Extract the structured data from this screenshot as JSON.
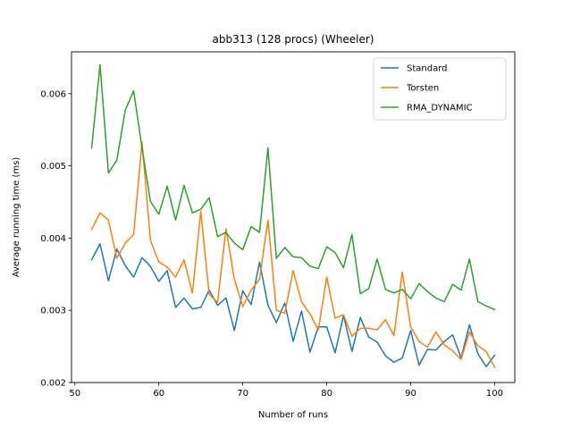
{
  "chart_data": {
    "type": "line",
    "title": "abb313 (128 procs) (Wheeler)",
    "xlabel": "Number of runs",
    "ylabel": "Average running time (ms)",
    "xlim": [
      49.6,
      102.4
    ],
    "ylim": [
      0.002,
      0.00658
    ],
    "xticks": [
      50,
      60,
      70,
      80,
      90,
      100
    ],
    "yticks": [
      0.002,
      0.003,
      0.004,
      0.005,
      0.006
    ],
    "ytick_labels": [
      "0.002",
      "0.003",
      "0.004",
      "0.005",
      "0.006"
    ],
    "grid": false,
    "legend_position": "top-right",
    "x": [
      52,
      53,
      54,
      55,
      56,
      57,
      58,
      59,
      60,
      61,
      62,
      63,
      64,
      65,
      66,
      67,
      68,
      69,
      70,
      71,
      72,
      73,
      74,
      75,
      76,
      77,
      78,
      79,
      80,
      81,
      82,
      83,
      84,
      85,
      86,
      87,
      88,
      89,
      90,
      91,
      92,
      93,
      94,
      95,
      96,
      97,
      98,
      99,
      100
    ],
    "series": [
      {
        "name": "Standard",
        "color": "#1f77b4",
        "values": [
          0.0037,
          0.00392,
          0.00341,
          0.00385,
          0.00362,
          0.00346,
          0.00373,
          0.00361,
          0.0034,
          0.00355,
          0.00304,
          0.00317,
          0.00302,
          0.00304,
          0.00328,
          0.00307,
          0.00317,
          0.00272,
          0.00327,
          0.00308,
          0.00367,
          0.00307,
          0.00283,
          0.0031,
          0.00257,
          0.00299,
          0.00242,
          0.00277,
          0.00277,
          0.00241,
          0.00293,
          0.00243,
          0.0029,
          0.00263,
          0.00256,
          0.00237,
          0.00228,
          0.00234,
          0.00272,
          0.00224,
          0.00246,
          0.00245,
          0.00257,
          0.00266,
          0.00234,
          0.0028,
          0.0024,
          0.00222,
          0.00238
        ]
      },
      {
        "name": "Torsten",
        "color": "#ff7f0e",
        "values": [
          0.00412,
          0.00435,
          0.00425,
          0.00372,
          0.00393,
          0.00405,
          0.00533,
          0.00397,
          0.00367,
          0.0036,
          0.00346,
          0.0037,
          0.00324,
          0.00437,
          0.00322,
          0.00311,
          0.00413,
          0.00343,
          0.00305,
          0.00328,
          0.00343,
          0.00425,
          0.003,
          0.00296,
          0.00355,
          0.00312,
          0.00295,
          0.00273,
          0.00346,
          0.00289,
          0.00294,
          0.00264,
          0.00275,
          0.00275,
          0.00273,
          0.00287,
          0.00265,
          0.00353,
          0.00277,
          0.00257,
          0.00249,
          0.0027,
          0.00252,
          0.00244,
          0.00232,
          0.0027,
          0.00251,
          0.00243,
          0.00221
        ]
      },
      {
        "name": "RMA_DYNAMIC",
        "color": "#2ca02c",
        "values": [
          0.00525,
          0.0064,
          0.0049,
          0.00508,
          0.00577,
          0.00604,
          0.00525,
          0.00451,
          0.00433,
          0.00472,
          0.00425,
          0.00473,
          0.00435,
          0.0044,
          0.00456,
          0.00402,
          0.00408,
          0.00393,
          0.00384,
          0.00416,
          0.00408,
          0.00525,
          0.00372,
          0.00387,
          0.00374,
          0.00373,
          0.00361,
          0.00358,
          0.00388,
          0.0038,
          0.00359,
          0.00405,
          0.00323,
          0.0033,
          0.00371,
          0.00329,
          0.00324,
          0.00329,
          0.00316,
          0.00337,
          0.00326,
          0.00317,
          0.00312,
          0.00336,
          0.00328,
          0.00371,
          0.00312,
          0.00306,
          0.00301
        ]
      }
    ]
  }
}
